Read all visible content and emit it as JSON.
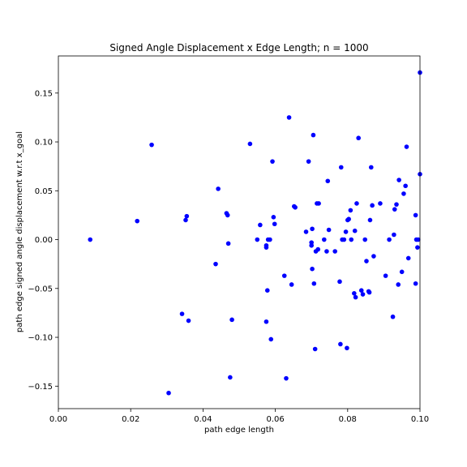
{
  "chart_data": {
    "type": "scatter",
    "title": "Signed Angle Displacement x Edge Length; n = 1000",
    "xlabel": "path edge length",
    "ylabel": "path edge signed angle displacement w.r.t x_goal",
    "xlim": [
      0.0,
      0.1
    ],
    "ylim": [
      -0.173,
      0.188
    ],
    "xticks": [
      0.0,
      0.02,
      0.04,
      0.06,
      0.08,
      0.1
    ],
    "xtick_labels": [
      "0.00",
      "0.02",
      "0.04",
      "0.06",
      "0.08",
      "0.10"
    ],
    "yticks": [
      -0.15,
      -0.1,
      -0.05,
      0.0,
      0.05,
      0.1,
      0.15
    ],
    "ytick_labels": [
      "−0.15",
      "−0.10",
      "−0.05",
      "0.00",
      "0.05",
      "0.10",
      "0.15"
    ],
    "grid": false,
    "marker_color": "#0000ff",
    "series": [
      {
        "x": [
          0.0088,
          0.0218,
          0.0258,
          0.0305,
          0.0342,
          0.0352,
          0.0355,
          0.036,
          0.0435,
          0.0442,
          0.0465,
          0.0468,
          0.047,
          0.0475,
          0.048,
          0.053,
          0.055,
          0.0558,
          0.0575,
          0.0575,
          0.0575,
          0.0578,
          0.058,
          0.0585,
          0.0588,
          0.0592,
          0.0595,
          0.0598,
          0.0625,
          0.063,
          0.0638,
          0.0645,
          0.0652,
          0.0655,
          0.0685,
          0.0692,
          0.07,
          0.07,
          0.0702,
          0.0702,
          0.0705,
          0.0707,
          0.071,
          0.0712,
          0.0715,
          0.0718,
          0.072,
          0.0735,
          0.0742,
          0.0745,
          0.0748,
          0.0765,
          0.0778,
          0.078,
          0.0782,
          0.0785,
          0.079,
          0.0795,
          0.0798,
          0.08,
          0.0803,
          0.0808,
          0.081,
          0.0818,
          0.082,
          0.0822,
          0.0825,
          0.083,
          0.0838,
          0.0842,
          0.0848,
          0.0852,
          0.0858,
          0.086,
          0.0862,
          0.0865,
          0.0868,
          0.0872,
          0.089,
          0.0905,
          0.0915,
          0.0925,
          0.0928,
          0.093,
          0.0935,
          0.094,
          0.0942,
          0.095,
          0.0955,
          0.096,
          0.0963,
          0.0968,
          0.0988,
          0.0988,
          0.099,
          0.0993,
          0.0995,
          0.1,
          0.1
        ],
        "y": [
          0.0,
          0.019,
          0.097,
          -0.157,
          -0.076,
          0.02,
          0.024,
          -0.083,
          -0.025,
          0.052,
          0.027,
          0.025,
          -0.004,
          -0.141,
          -0.082,
          0.098,
          0.0,
          0.015,
          -0.084,
          -0.006,
          -0.008,
          -0.052,
          0.0,
          0.0,
          -0.102,
          0.08,
          0.023,
          0.016,
          -0.037,
          -0.142,
          0.125,
          -0.046,
          0.034,
          0.033,
          0.008,
          0.08,
          -0.006,
          -0.003,
          -0.03,
          0.011,
          0.107,
          -0.045,
          -0.112,
          -0.012,
          0.037,
          -0.01,
          0.037,
          0.0,
          -0.012,
          0.06,
          0.01,
          -0.012,
          -0.043,
          -0.107,
          0.074,
          0.0,
          0.0,
          0.008,
          -0.111,
          0.02,
          0.021,
          0.03,
          0.0,
          -0.055,
          0.009,
          -0.059,
          0.037,
          0.104,
          -0.052,
          -0.056,
          0.0,
          -0.022,
          -0.053,
          -0.054,
          0.02,
          0.074,
          0.035,
          -0.017,
          0.037,
          -0.037,
          0.0,
          -0.079,
          0.005,
          0.031,
          0.036,
          -0.046,
          0.061,
          -0.033,
          0.047,
          0.055,
          0.095,
          -0.019,
          0.025,
          -0.045,
          0.0,
          -0.008,
          0.0,
          0.171,
          0.067
        ]
      }
    ]
  }
}
